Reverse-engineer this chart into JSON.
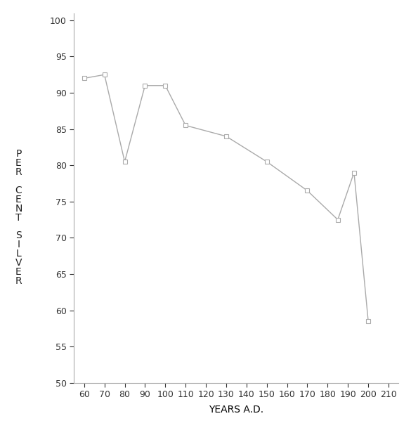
{
  "x": [
    60,
    70,
    80,
    90,
    100,
    110,
    130,
    150,
    170,
    185,
    193,
    200
  ],
  "y": [
    92,
    92.5,
    80.5,
    91,
    91,
    85.5,
    84,
    80.5,
    76.5,
    72.5,
    79,
    58.5
  ],
  "xlim": [
    55,
    215
  ],
  "ylim": [
    50,
    101
  ],
  "xticks": [
    60,
    70,
    80,
    90,
    100,
    110,
    120,
    130,
    140,
    150,
    160,
    170,
    180,
    190,
    200,
    210
  ],
  "yticks": [
    50,
    55,
    60,
    65,
    70,
    75,
    80,
    85,
    90,
    95,
    100
  ],
  "xlabel": "YEARS A.D.",
  "ylabel_lines": [
    "P",
    "E",
    "R",
    " ",
    "C",
    "E",
    "N",
    "T",
    " ",
    "S",
    "I",
    "L",
    "V",
    "E",
    "R"
  ],
  "line_color": "#aaaaaa",
  "marker": "s",
  "marker_size": 4,
  "marker_facecolor": "#ffffff",
  "marker_edgecolor": "#aaaaaa",
  "linewidth": 1.0,
  "background_color": "#ffffff",
  "xlabel_fontsize": 10,
  "ylabel_fontsize": 10,
  "tick_fontsize": 9,
  "spine_color": "#aaaaaa"
}
